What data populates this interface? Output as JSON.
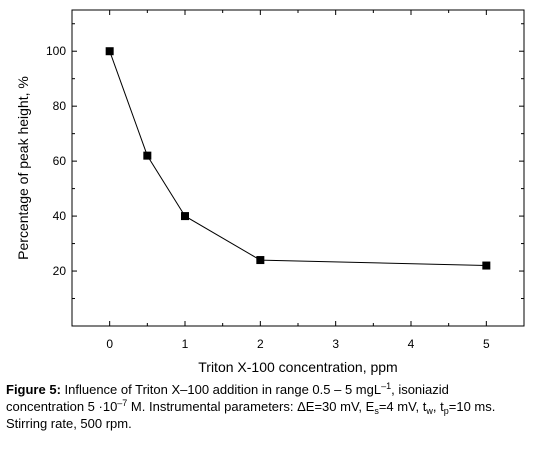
{
  "chart_data": {
    "type": "line",
    "x": [
      0,
      0.5,
      1,
      2,
      5
    ],
    "y": [
      100,
      62,
      40,
      24,
      22
    ],
    "xlabel": "Triton X-100 concentration, ppm",
    "ylabel": "Percentage of peak height, %",
    "xlim": [
      -0.5,
      5.5
    ],
    "ylim": [
      0,
      115
    ],
    "xticks": [
      "0",
      "1",
      "2",
      "3",
      "4",
      "5"
    ],
    "yticks": [
      "20",
      "40",
      "60",
      "80",
      "100"
    ],
    "marker": "square",
    "grid": false,
    "colors": {
      "line": "#000000",
      "marker": "#000000"
    }
  },
  "caption": {
    "label": "Figure 5:",
    "intro": " Influence of Triton X–100 addition in range 0.5 – 5 mgL",
    "exp1": "–1",
    "part2": ", isoniazid concentration 5 ·10",
    "exp2": "–7",
    "part3": " M. Instrumental parameters: ΔE=30 mV, E",
    "sub1": "s",
    "part4": "=4 mV, t",
    "sub2": "w",
    "part5": ", t",
    "sub3": "p",
    "part6": "=10 ms. Stirring rate, 500 rpm."
  }
}
